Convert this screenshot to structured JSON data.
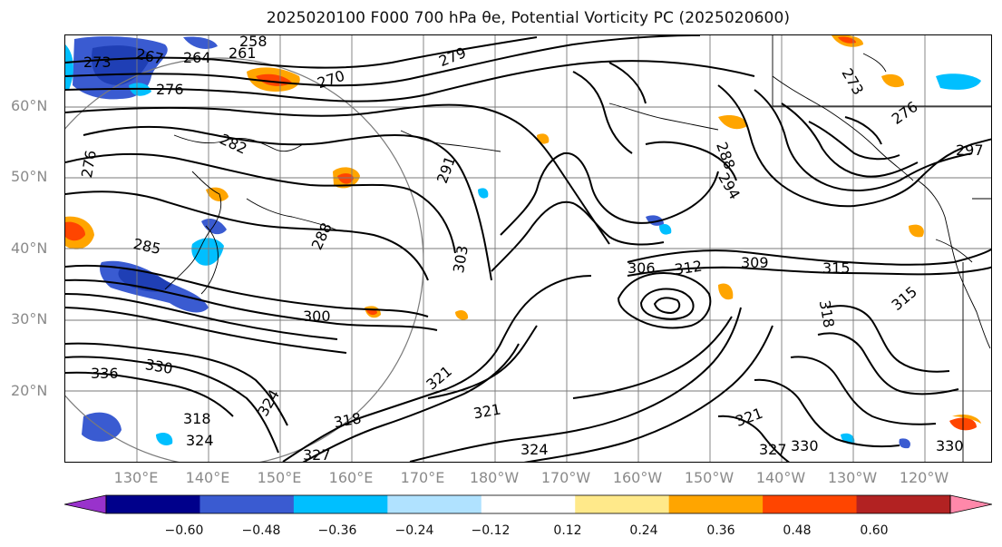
{
  "title": "2025020100 F000 700 hPa θe, Potential Vorticity PC (2025020600)",
  "latitude_labels": [
    "60°N",
    "50°N",
    "40°N",
    "30°N",
    "20°N"
  ],
  "longitude_labels": [
    "130°E",
    "140°E",
    "150°E",
    "160°E",
    "170°E",
    "180°W",
    "170°W",
    "160°W",
    "150°W",
    "140°W",
    "130°W",
    "120°W"
  ],
  "contour_labels": [
    {
      "text": "273"
    },
    {
      "text": "267"
    },
    {
      "text": "264"
    },
    {
      "text": "261"
    },
    {
      "text": "258"
    },
    {
      "text": "276"
    },
    {
      "text": "270"
    },
    {
      "text": "279"
    },
    {
      "text": "282"
    },
    {
      "text": "276"
    },
    {
      "text": "291"
    },
    {
      "text": "288"
    },
    {
      "text": "294"
    },
    {
      "text": "297"
    },
    {
      "text": "285"
    },
    {
      "text": "288"
    },
    {
      "text": "303"
    },
    {
      "text": "306"
    },
    {
      "text": "312"
    },
    {
      "text": "309"
    },
    {
      "text": "315"
    },
    {
      "text": "300"
    },
    {
      "text": "318"
    },
    {
      "text": "336"
    },
    {
      "text": "330"
    },
    {
      "text": "324"
    },
    {
      "text": "318"
    },
    {
      "text": "321"
    },
    {
      "text": "321"
    },
    {
      "text": "318"
    },
    {
      "text": "324"
    },
    {
      "text": "327"
    },
    {
      "text": "324"
    },
    {
      "text": "327"
    },
    {
      "text": "330"
    },
    {
      "text": "321"
    },
    {
      "text": "330"
    },
    {
      "text": "273"
    },
    {
      "text": "276"
    },
    {
      "text": "315"
    }
  ],
  "colorbar": {
    "tick_labels": [
      "−0.60",
      "−0.48",
      "−0.36",
      "−0.24",
      "−0.12",
      "0.12",
      "0.24",
      "0.36",
      "0.48",
      "0.60"
    ],
    "colors": [
      "#9932cc",
      "#00008b",
      "#3a5bd1",
      "#00bfff",
      "#b0e2ff",
      "#ffffff",
      "#ffe98a",
      "#ffa500",
      "#ff4500",
      "#b22222",
      "#ff88aa"
    ],
    "extend": "both"
  },
  "colors": {
    "contour": "#000000",
    "grid": "#7a7a7a",
    "labels": "#8a8a8a"
  }
}
